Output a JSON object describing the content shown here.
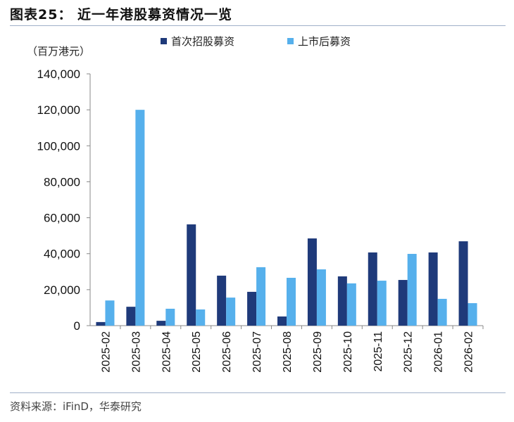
{
  "header": {
    "title": "图表25：  近一年港股募资情况一览"
  },
  "footer": {
    "source": "资料来源：iFinD，华泰研究"
  },
  "chart_data": {
    "type": "bar",
    "title": "图表25：  近一年港股募资情况一览",
    "ylabel": "（百万港元）",
    "xlabel": "",
    "ylim": [
      0,
      140000
    ],
    "yticks": [
      "0",
      "20,000",
      "40,000",
      "60,000",
      "80,000",
      "100,000",
      "120,000",
      "140,000"
    ],
    "grid": false,
    "legend": "top",
    "categories": [
      "2025-02",
      "2025-03",
      "2025-04",
      "2025-05",
      "2025-06",
      "2025-07",
      "2025-08",
      "2025-09",
      "2025-10",
      "2025-11",
      "2025-12",
      "2026-01",
      "2026-02"
    ],
    "series": [
      {
        "name": "首次招股募资",
        "color": "#1f3a7a",
        "values": [
          2000,
          10500,
          2700,
          56300,
          27800,
          18800,
          5100,
          48500,
          27400,
          40700,
          25400,
          40700,
          46900
        ]
      },
      {
        "name": "上市后募资",
        "color": "#56b0ec",
        "values": [
          14000,
          120000,
          9400,
          9000,
          15600,
          32500,
          26600,
          31300,
          23500,
          25000,
          39900,
          14900,
          12500
        ]
      }
    ]
  }
}
